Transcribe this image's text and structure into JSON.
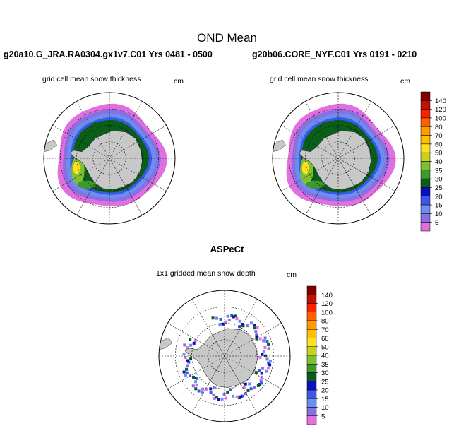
{
  "chart_data": [
    {
      "type": "heatmap",
      "title": "OND Mean",
      "panel_title": "g20a10.G_JRA.RA0304.gx1v7.C01  Yrs 0481 - 0500",
      "subtitle": "grid cell mean snow thickness",
      "units": "cm",
      "projection": "south polar stereographic"
    },
    {
      "type": "heatmap",
      "panel_title": "g20b06.CORE_NYF.C01  Yrs 0191 - 0210",
      "subtitle": "grid cell mean snow thickness",
      "units": "cm",
      "projection": "south polar stereographic"
    },
    {
      "type": "heatmap",
      "panel_title": "ASPeCt",
      "subtitle": "1x1 gridded mean snow depth",
      "units": "cm",
      "projection": "south polar stereographic"
    }
  ],
  "colorbar": {
    "levels": [
      "5",
      "10",
      "15",
      "20",
      "25",
      "30",
      "35",
      "40",
      "50",
      "60",
      "70",
      "80",
      "100",
      "120",
      "140"
    ],
    "colors": [
      "#e070e0",
      "#8a6fe0",
      "#6a8ff0",
      "#3d57e8",
      "#0a10c0",
      "#0a5e1a",
      "#3d9a2d",
      "#7fbf30",
      "#c8d020",
      "#ffe020",
      "#ffc000",
      "#ff9a00",
      "#ff6000",
      "#ff2000",
      "#c01000",
      "#800000"
    ]
  },
  "colors": {
    "land": "#c8c8c8",
    "ink": "#000000"
  }
}
